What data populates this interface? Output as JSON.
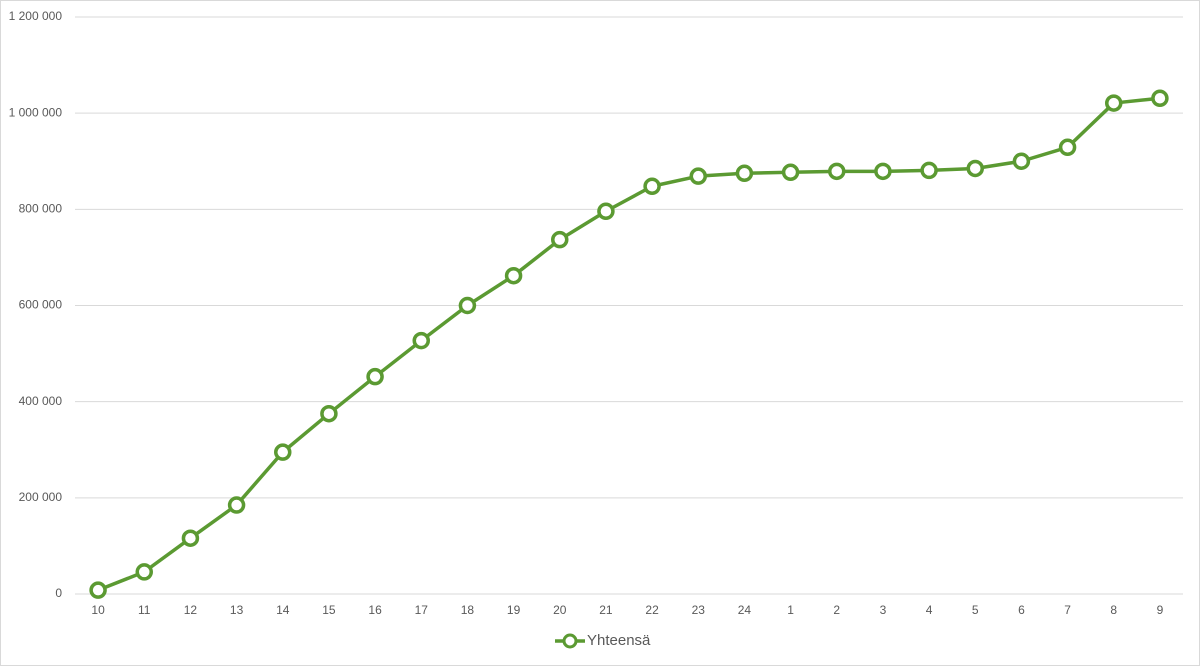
{
  "chart_data": {
    "type": "line",
    "categories": [
      "10",
      "11",
      "12",
      "13",
      "14",
      "15",
      "16",
      "17",
      "18",
      "19",
      "20",
      "21",
      "22",
      "23",
      "24",
      "1",
      "2",
      "3",
      "4",
      "5",
      "6",
      "7",
      "8",
      "9"
    ],
    "series": [
      {
        "name": "Yhteensä",
        "color": "#5b9a32",
        "values": [
          8000,
          46000,
          116000,
          185000,
          295000,
          375000,
          452000,
          527000,
          600000,
          662000,
          737000,
          796000,
          848000,
          869000,
          875000,
          877000,
          879000,
          879000,
          881000,
          885000,
          900000,
          929000,
          1021000,
          1031000
        ]
      }
    ],
    "ylim": [
      0,
      1200000
    ],
    "yticks": [
      0,
      {
        "value": 200000,
        "label": "200 000"
      },
      {
        "value": 400000,
        "label": "400 000"
      },
      {
        "value": 600000,
        "label": "600 000"
      },
      {
        "value": 800000,
        "label": "800 000"
      },
      {
        "value": 1000000,
        "label": "1 000 000"
      },
      {
        "value": 1200000,
        "label": "1 200 000"
      }
    ],
    "grid": true,
    "legend": "bottom"
  }
}
